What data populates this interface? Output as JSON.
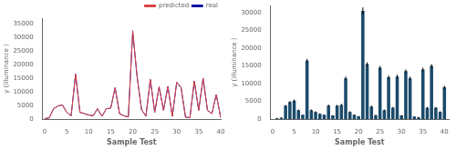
{
  "chart_data": [
    {
      "type": "line",
      "x": [
        0,
        1,
        2,
        3,
        4,
        5,
        6,
        7,
        8,
        9,
        10,
        11,
        12,
        13,
        14,
        15,
        16,
        17,
        18,
        19,
        20,
        21,
        22,
        23,
        24,
        25,
        26,
        27,
        28,
        29,
        30,
        31,
        32,
        33,
        34,
        35,
        36,
        37,
        38,
        39,
        40
      ],
      "series": [
        {
          "name": "real",
          "color": "#1111aa",
          "values": [
            200,
            400,
            3800,
            4800,
            5200,
            2500,
            1200,
            16500,
            2500,
            2000,
            1500,
            1200,
            3800,
            1000,
            3800,
            4000,
            11500,
            2000,
            1200,
            800,
            32000,
            15500,
            3500,
            1100,
            14500,
            2500,
            11800,
            3200,
            12000,
            1000,
            13500,
            11500,
            700,
            500,
            14000,
            3200,
            15000,
            3200,
            2000,
            9000,
            500
          ]
        },
        {
          "name": "predicted",
          "color": "#dd4444",
          "values": [
            200,
            400,
            3800,
            4800,
            5200,
            2500,
            1200,
            16500,
            2500,
            2000,
            1500,
            1200,
            3800,
            1000,
            3800,
            4000,
            11500,
            2000,
            1200,
            800,
            32500,
            15500,
            3500,
            1100,
            14500,
            2500,
            11800,
            3200,
            12000,
            1000,
            13500,
            11500,
            700,
            500,
            14000,
            3200,
            15000,
            3200,
            2000,
            9000,
            500
          ]
        }
      ],
      "xlabel": "Sample Test",
      "ylabel": "y (illuminance )",
      "xlim": [
        -0.5,
        40
      ],
      "ylim": [
        0,
        37000
      ],
      "xticks": [
        0,
        5,
        10,
        15,
        20,
        25,
        30,
        35,
        40
      ],
      "yticks": [
        0,
        5000,
        10000,
        15000,
        20000,
        25000,
        30000,
        35000
      ],
      "legend": "upper right",
      "grid": false
    },
    {
      "type": "bar",
      "x": [
        1,
        2,
        3,
        4,
        5,
        6,
        7,
        8,
        9,
        10,
        11,
        12,
        13,
        14,
        15,
        16,
        17,
        18,
        19,
        20,
        21,
        22,
        23,
        24,
        25,
        26,
        27,
        28,
        29,
        30,
        31,
        32,
        33,
        34,
        35,
        36,
        37,
        38,
        39,
        40
      ],
      "values": [
        200,
        400,
        3800,
        4800,
        5200,
        2500,
        1200,
        16500,
        2500,
        2000,
        1500,
        1200,
        3800,
        1000,
        3800,
        4000,
        11500,
        2000,
        1200,
        800,
        30500,
        15500,
        3500,
        1100,
        14500,
        2500,
        11800,
        3200,
        12000,
        1000,
        13500,
        11500,
        700,
        500,
        14000,
        3200,
        15000,
        3200,
        2000,
        9000
      ],
      "errors": [
        150,
        100,
        200,
        300,
        300,
        200,
        100,
        500,
        200,
        200,
        150,
        100,
        300,
        100,
        200,
        300,
        500,
        200,
        100,
        100,
        1000,
        500,
        300,
        100,
        500,
        200,
        500,
        200,
        500,
        100,
        500,
        500,
        100,
        100,
        500,
        200,
        500,
        200,
        200,
        400
      ],
      "color": "#1a4a6a",
      "xlabel": "Sample Test",
      "ylabel": "y (illuminance )",
      "xlim": [
        -0.5,
        41
      ],
      "ylim": [
        0,
        32000
      ],
      "xticks": [
        0,
        5,
        10,
        15,
        20,
        25,
        30,
        35,
        40
      ],
      "yticks": [
        0,
        5000,
        10000,
        15000,
        20000,
        25000,
        30000
      ],
      "grid": false
    }
  ]
}
